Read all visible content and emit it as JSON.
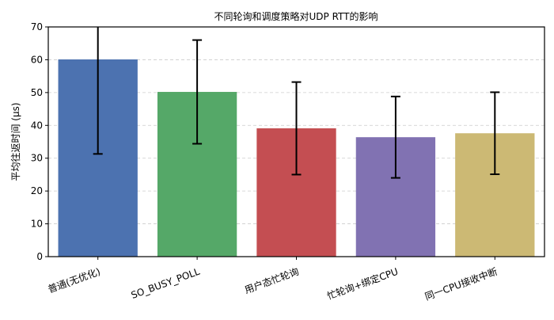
{
  "chart_data": {
    "type": "bar",
    "title": "不同轮询和调度策略对UDP RTT的影响",
    "xlabel": "",
    "ylabel": "平均往返时间 (μs)",
    "ylim": [
      0,
      70
    ],
    "yticks": [
      0,
      10,
      20,
      30,
      40,
      50,
      60,
      70
    ],
    "grid": "y-dashed",
    "categories": [
      "普通(无优化)",
      "SO_BUSY_POLL",
      "用户态忙轮询",
      "忙轮询+绑定CPU",
      "同一CPU接收中断"
    ],
    "values": [
      60.1,
      50.2,
      39.1,
      36.4,
      37.6
    ],
    "errors": [
      28.8,
      15.8,
      14.1,
      12.4,
      12.5
    ],
    "colors": [
      "#4c72b0",
      "#55a868",
      "#c44e52",
      "#8172b2",
      "#ccb974"
    ]
  }
}
